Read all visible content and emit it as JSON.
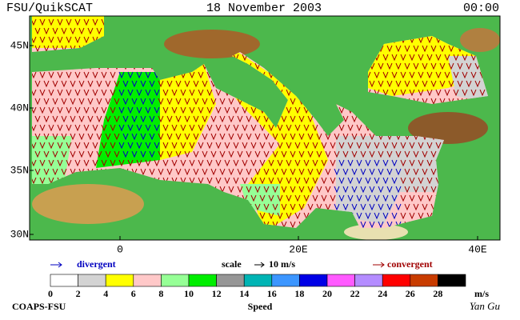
{
  "header": {
    "left": "FSU/QuikSCAT",
    "center": "18 November 2003",
    "right": "00:00"
  },
  "map": {
    "lat_labels": [
      "45N",
      "40N",
      "35N",
      "30N"
    ],
    "lon_labels": [
      "0",
      "20E",
      "40E"
    ]
  },
  "legend": {
    "divergent": "divergent",
    "scale": "scale",
    "scale_value": "10 m/s",
    "convergent": "convergent"
  },
  "colorbar": {
    "ticks": [
      0,
      2,
      4,
      6,
      8,
      10,
      12,
      14,
      16,
      18,
      20,
      22,
      24,
      26,
      28
    ],
    "unit": "m/s",
    "title": "Speed",
    "colors": [
      "#ffffff",
      "#d3d3d3",
      "#ffff00",
      "#ffc8c8",
      "#96ff96",
      "#00ee00",
      "#969696",
      "#00b4b4",
      "#3c96ff",
      "#0000e6",
      "#ff5aff",
      "#b48cff",
      "#ff0000",
      "#c83c00",
      "#000000"
    ]
  },
  "footer": {
    "left": "COAPS-FSU",
    "signature": "Yan Gu"
  }
}
